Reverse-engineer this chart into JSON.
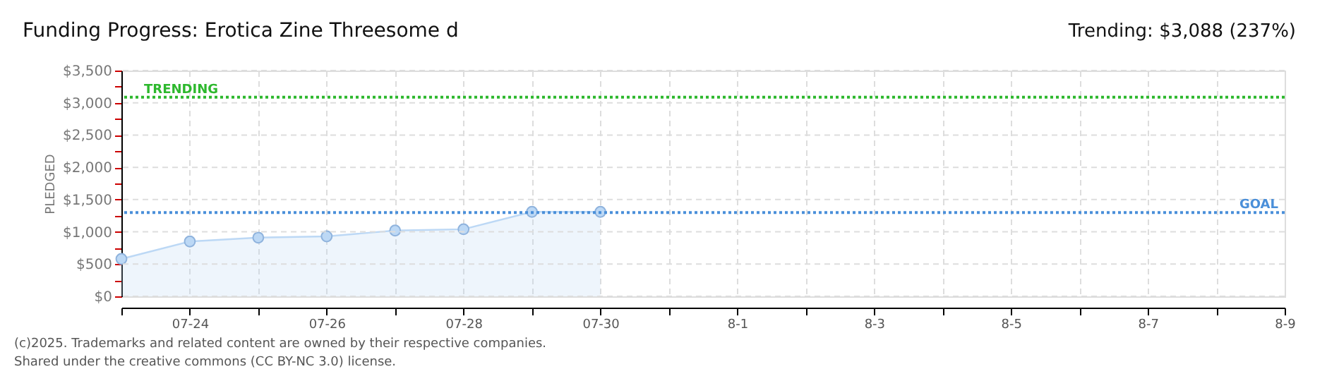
{
  "chart_data": {
    "type": "area",
    "title": "Funding Progress: Erotica Zine Threesome d",
    "subtitle": "Trending:  $3,088 (237%)",
    "ylabel": "PLEDGED",
    "categories": [
      null,
      "07-24",
      null,
      "07-26",
      null,
      "07-28",
      null,
      "07-30",
      null,
      "8-1",
      null,
      "8-3",
      null,
      "8-5",
      null,
      "8-7",
      null,
      "8-9"
    ],
    "series": [
      {
        "color": "#bcd8f5",
        "values": [
          580,
          850,
          910,
          930,
          1020,
          1040,
          1310,
          1310,
          null,
          null,
          null,
          null,
          null,
          null,
          null,
          null,
          null,
          null
        ]
      }
    ],
    "ylim": [
      0,
      3500
    ],
    "yticks": [
      {
        "value": 0,
        "label": "$0"
      },
      {
        "value": 250,
        "label": null
      },
      {
        "value": 500,
        "label": "$500"
      },
      {
        "value": 750,
        "label": null
      },
      {
        "value": 1000,
        "label": "$1,000"
      },
      {
        "value": 1250,
        "label": null
      },
      {
        "value": 1500,
        "label": "$1,500"
      },
      {
        "value": 1750,
        "label": null
      },
      {
        "value": 2000,
        "label": "$2,000"
      },
      {
        "value": 2250,
        "label": null
      },
      {
        "value": 2500,
        "label": "$2,500"
      },
      {
        "value": 2750,
        "label": null
      },
      {
        "value": 3000,
        "label": "$3,000"
      },
      {
        "value": 3250,
        "label": null
      },
      {
        "value": 3500,
        "label": "$3,500"
      }
    ],
    "ref_lines": [
      {
        "axis": "y",
        "value": 3088,
        "label": "TRENDING",
        "color": "#2db82d",
        "line_style": "dotted"
      },
      {
        "axis": "y",
        "value": 1300,
        "label": "GOAL",
        "color": "#4a8fd9",
        "line_style": "dotted"
      }
    ],
    "grid": true,
    "marker": "circle",
    "annotations": [
      "(c)2025. Trademarks and related content are owned by their respective companies.",
      "Shared under the creative commons (CC BY-NC 3.0) license."
    ]
  }
}
